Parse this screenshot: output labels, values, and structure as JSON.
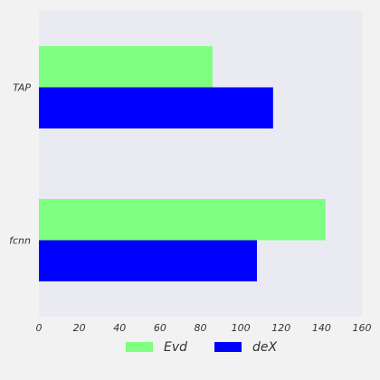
{
  "chart_data": {
    "type": "bar",
    "orientation": "horizontal",
    "categories": [
      "TAP",
      "fcnn"
    ],
    "series": [
      {
        "name": "Evd",
        "values": [
          86,
          142
        ],
        "color": "#7fff7f"
      },
      {
        "name": "deX",
        "values": [
          116,
          108
        ],
        "color": "#0000ff"
      }
    ],
    "xlim": [
      0,
      160
    ],
    "x_ticks": [
      "0",
      "20",
      "40",
      "60",
      "80",
      "100",
      "120",
      "140",
      "160"
    ],
    "title": "",
    "xlabel": "",
    "ylabel": "",
    "grid": false,
    "legend_position": "bottom-center",
    "plot_background": "#eaeaf2"
  }
}
